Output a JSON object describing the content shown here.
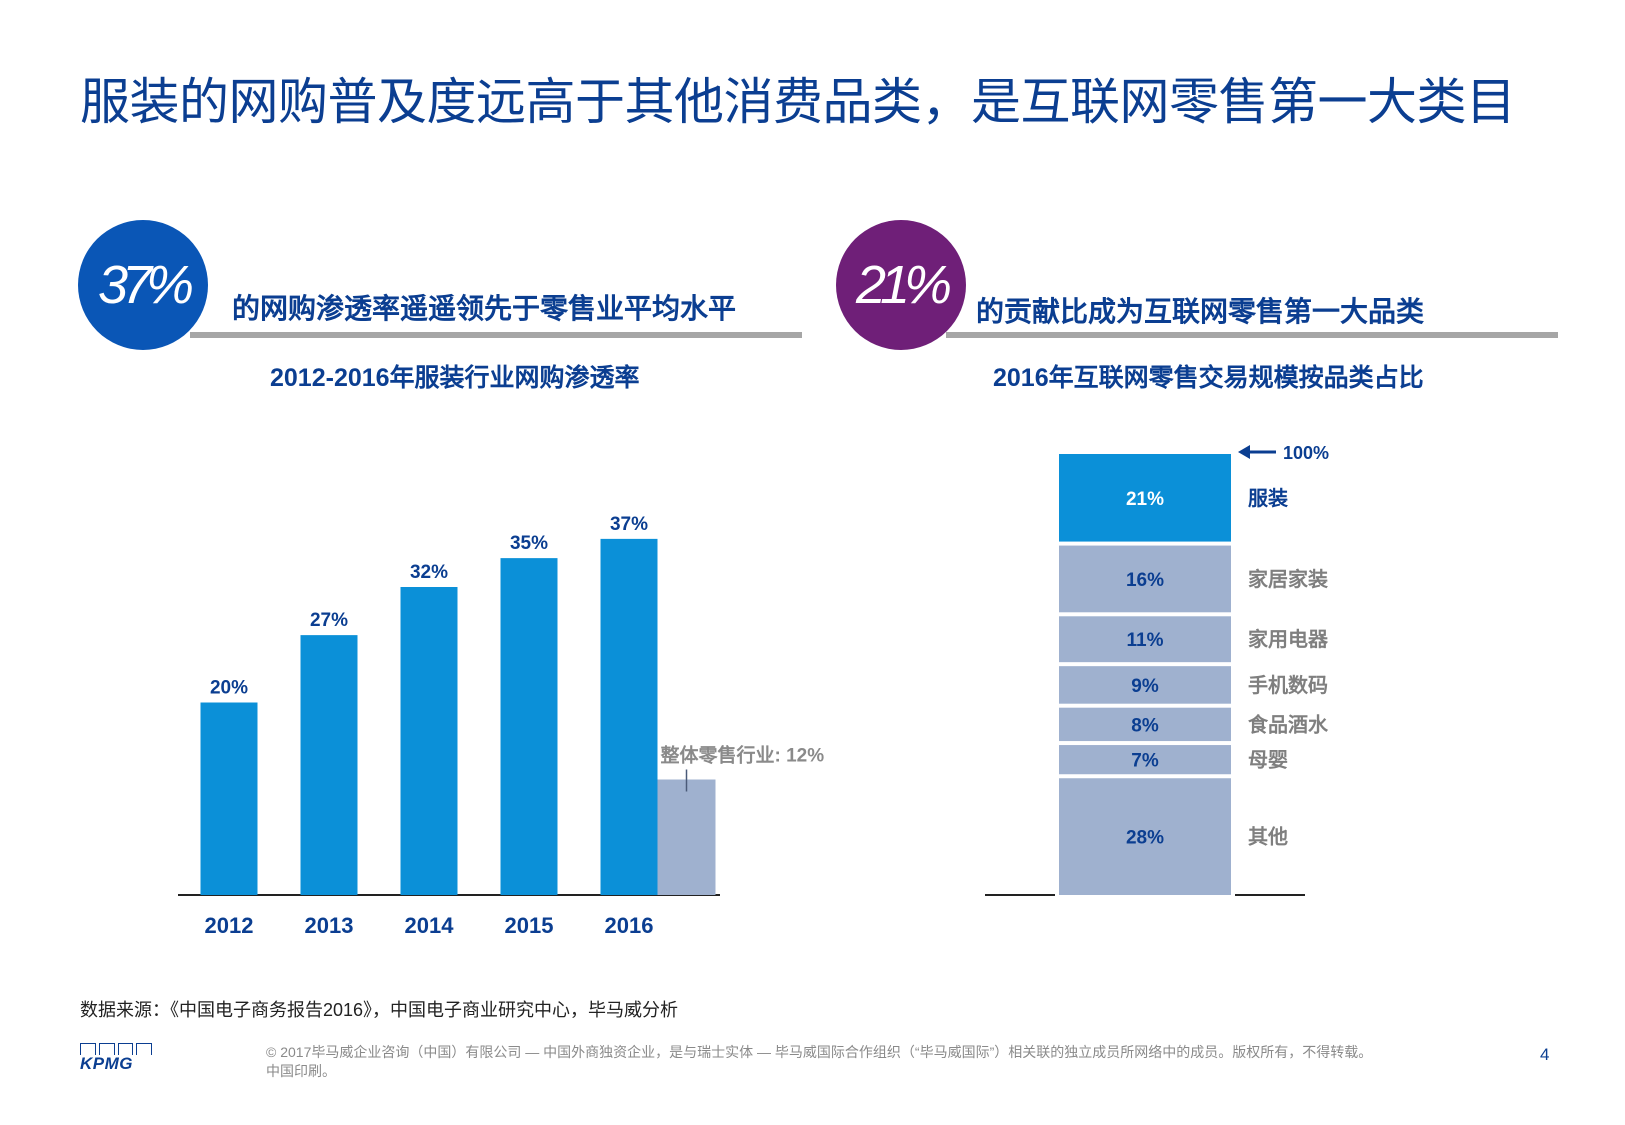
{
  "title": "服装的网购普及度远高于其他消费品类，是互联网零售第一大类目",
  "left_panel": {
    "circle_value": "37%",
    "headline": "的网购渗透率遥遥领先于零售业平均水平",
    "subtitle": "2012-2016年服装行业网购渗透率"
  },
  "right_panel": {
    "circle_value": "21%",
    "headline": "的贡献比成为互联网零售第一大品类",
    "subtitle": "2016年互联网零售交易规模按品类占比"
  },
  "colors": {
    "title_blue": "#0b3e91",
    "bar_blue": "#0b90d8",
    "bar_grey": "#9fb1cf",
    "stack_top": "#0b90d8",
    "stack_other": "#9fb1cf",
    "circle_left": "#0a56b6",
    "circle_right": "#6f1f78"
  },
  "chart_data": [
    {
      "type": "bar",
      "title": "2012-2016年服装行业网购渗透率",
      "categories": [
        "2012",
        "2013",
        "2014",
        "2015",
        "2016"
      ],
      "values": [
        20,
        27,
        32,
        35,
        37
      ],
      "value_labels": [
        "20%",
        "27%",
        "32%",
        "35%",
        "37%"
      ],
      "ylim": [
        0,
        40
      ],
      "reference": {
        "label": "整体零售行业: 12%",
        "value": 12
      }
    },
    {
      "type": "bar",
      "title": "2016年互联网零售交易规模按品类占比",
      "stacked": true,
      "total_label": "100%",
      "segments": [
        {
          "category": "服装",
          "value": 21,
          "label": "21%"
        },
        {
          "category": "家居家装",
          "value": 16,
          "label": "16%"
        },
        {
          "category": "家用电器",
          "value": 11,
          "label": "11%"
        },
        {
          "category": "手机数码",
          "value": 9,
          "label": "9%"
        },
        {
          "category": "食品酒水",
          "value": 8,
          "label": "8%"
        },
        {
          "category": "母婴",
          "value": 7,
          "label": "7%"
        },
        {
          "category": "其他",
          "value": 28,
          "label": "28%"
        }
      ]
    }
  ],
  "footer": {
    "source": "数据来源：《中国电子商务报告2016》，中国电子商业研究中心，毕马威分析",
    "logo": "KPMG",
    "copyright": "© 2017毕马威企业咨询（中国）有限公司 — 中国外商独资企业，是与瑞士实体 — 毕马威国际合作组织（“毕马威国际”）相关联的独立成员所网络中的成员。版权所有，不得转载。中国印刷。",
    "page": "4"
  }
}
